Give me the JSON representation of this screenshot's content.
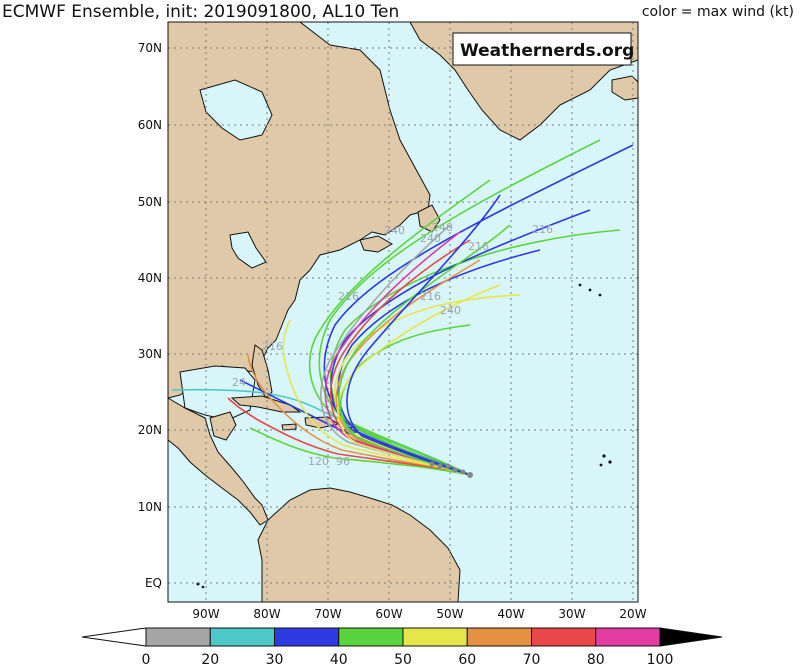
{
  "header": {
    "title": "ECMWF Ensemble, init: 2019091800, AL10 Ten",
    "legend_note": "color = max wind (kt)"
  },
  "watermark": "Weathernerds.org",
  "map": {
    "lat_labels": [
      "70N",
      "60N",
      "50N",
      "40N",
      "30N",
      "20N",
      "10N",
      "EQ"
    ],
    "lon_labels": [
      "90W",
      "80W",
      "70W",
      "60W",
      "50W",
      "40W",
      "30W",
      "20W"
    ],
    "colors": {
      "ocean": "#d8f6fa",
      "land": "#e0c9a8",
      "coast": "#111111",
      "grid": "#7a7a7a"
    },
    "track_labels": [
      "240",
      "216",
      "216",
      "216",
      "240",
      "240",
      "96",
      "120",
      "216",
      "240",
      "216",
      "24"
    ]
  },
  "colorbar": {
    "ticks": [
      "0",
      "20",
      "30",
      "40",
      "50",
      "60",
      "70",
      "80",
      "100"
    ],
    "colors": [
      "#a6a6a6",
      "#4cc8c8",
      "#2c3ae0",
      "#5ad43c",
      "#e6e64a",
      "#e69142",
      "#e84848",
      "#e23ca0",
      "#000000"
    ]
  }
}
